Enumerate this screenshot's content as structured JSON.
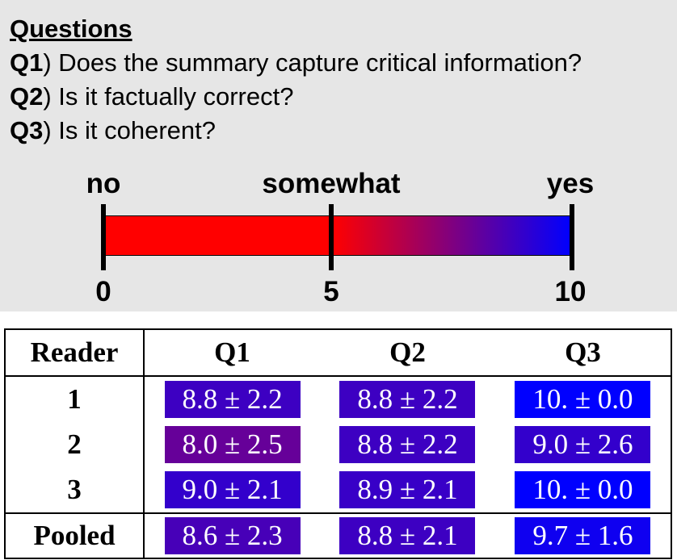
{
  "questions": {
    "title": "Questions",
    "items": [
      {
        "id": "Q1",
        "text": ") Does the summary capture critical information?"
      },
      {
        "id": "Q2",
        "text": ") Is it factually correct?"
      },
      {
        "id": "Q3",
        "text": ") Is it coherent?"
      }
    ]
  },
  "scale": {
    "labels": [
      {
        "word": "no",
        "value": "0"
      },
      {
        "word": "somewhat",
        "value": "5"
      },
      {
        "word": "yes",
        "value": "10"
      }
    ],
    "colors": {
      "low": "#ff0000",
      "high": "#0000ff"
    },
    "range": [
      0,
      10
    ]
  },
  "table": {
    "headers": [
      "Reader",
      "Q1",
      "Q2",
      "Q3"
    ],
    "rows": [
      {
        "reader": "1",
        "cells": [
          {
            "text": "8.8 ± 2.2",
            "score": 8.8
          },
          {
            "text": "8.8 ± 2.2",
            "score": 8.8
          },
          {
            "text": "10. ± 0.0",
            "score": 10.0
          }
        ]
      },
      {
        "reader": "2",
        "cells": [
          {
            "text": "8.0 ± 2.5",
            "score": 8.0
          },
          {
            "text": "8.8 ± 2.2",
            "score": 8.8
          },
          {
            "text": "9.0 ± 2.6",
            "score": 9.0
          }
        ]
      },
      {
        "reader": "3",
        "cells": [
          {
            "text": "9.0 ± 2.1",
            "score": 9.0
          },
          {
            "text": "8.9 ± 2.1",
            "score": 8.9
          },
          {
            "text": "10. ± 0.0",
            "score": 10.0
          }
        ]
      }
    ],
    "pooled": {
      "reader": "Pooled",
      "cells": [
        {
          "text": "8.6 ± 2.3",
          "score": 8.6
        },
        {
          "text": "8.8 ± 2.1",
          "score": 8.8
        },
        {
          "text": "9.7 ± 1.6",
          "score": 9.7
        }
      ]
    }
  }
}
